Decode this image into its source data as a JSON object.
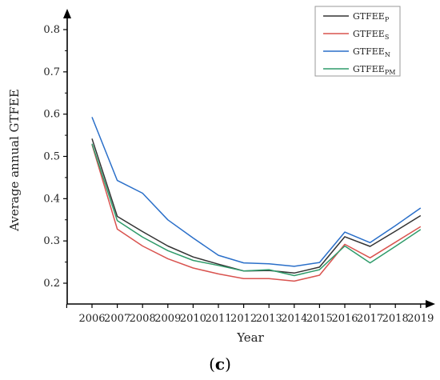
{
  "chart_data": {
    "type": "line",
    "xlabel": "Year",
    "ylabel": "Average annual GTFEE",
    "x": [
      "2006",
      "2007",
      "2008",
      "2009",
      "2010",
      "2011",
      "2012",
      "2013",
      "2014",
      "2015",
      "2016",
      "2017",
      "2018",
      "2019"
    ],
    "ylim": [
      0.15,
      0.85
    ],
    "yticks": [
      0.2,
      0.3,
      0.4,
      0.5,
      0.6,
      0.7,
      0.8
    ],
    "grid": false,
    "legend_position": "top-right",
    "series": [
      {
        "name": "GTFEE",
        "sub": "P",
        "color": "#333333",
        "values": [
          0.542,
          0.358,
          0.322,
          0.288,
          0.262,
          0.245,
          0.229,
          0.23,
          0.224,
          0.238,
          0.31,
          0.287,
          0.323,
          0.36
        ]
      },
      {
        "name": "GTFEE",
        "sub": "S",
        "color": "#d9534f",
        "values": [
          0.528,
          0.328,
          0.288,
          0.258,
          0.236,
          0.222,
          0.211,
          0.211,
          0.205,
          0.219,
          0.292,
          0.26,
          0.297,
          0.334
        ]
      },
      {
        "name": "GTFEE",
        "sub": "N",
        "color": "#2a6fc9",
        "values": [
          0.593,
          0.443,
          0.413,
          0.35,
          0.307,
          0.266,
          0.248,
          0.246,
          0.24,
          0.249,
          0.321,
          0.296,
          0.336,
          0.378
        ]
      },
      {
        "name": "GTFEE",
        "sub": "PM",
        "color": "#2e9b6a",
        "values": [
          0.53,
          0.348,
          0.309,
          0.277,
          0.254,
          0.242,
          0.229,
          0.232,
          0.218,
          0.232,
          0.288,
          0.248,
          0.287,
          0.327
        ]
      }
    ]
  },
  "panel_label": {
    "open": "(",
    "letter": "c",
    "close": ")"
  }
}
